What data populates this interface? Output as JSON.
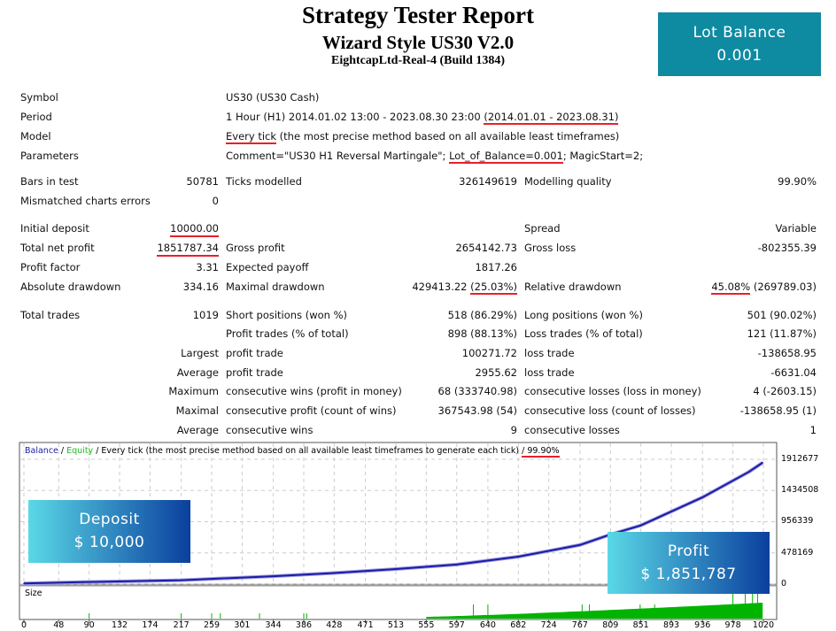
{
  "header": {
    "title": "Strategy Tester Report",
    "subtitle": "Wizard Style US30 V2.0",
    "build": "EightcapLtd-Real-4 (Build 1384)"
  },
  "lot_badge": {
    "label": "Lot Balance",
    "value": "0.001",
    "color": "#0e8aa1"
  },
  "info": [
    {
      "label": "Symbol",
      "value": "US30 (US30 Cash)"
    },
    {
      "label": "Period",
      "value": "1 Hour (H1) 2014.01.02 13:00 - 2023.08.30 23:00 ",
      "highlight": "(2014.01.01 - 2023.08.31)"
    },
    {
      "label": "Model",
      "highlight": "Every tick",
      "value": " (the most precise method based on all available least timeframes)"
    },
    {
      "label": "Parameters",
      "value": "Comment=\"US30 H1 Reversal Martingale\"; ",
      "highlight": "Lot_of_Balance=0.001",
      "tail": "; MagicStart=2;"
    }
  ],
  "stats": {
    "bars_label": "Bars in test",
    "bars": "50781",
    "ticks_label": "Ticks modelled",
    "ticks": "326149619",
    "quality_label": "Modelling quality",
    "quality": "99.90%",
    "mismatch_label": "Mismatched charts errors",
    "mismatch": "0",
    "deposit_label": "Initial deposit",
    "deposit": "10000.00",
    "spread_label": "Spread",
    "spread": "Variable",
    "net_label": "Total net profit",
    "net": "1851787.34",
    "gp_label": "Gross profit",
    "gp": "2654142.73",
    "gl_label": "Gross loss",
    "gl": "-802355.39",
    "pf_label": "Profit factor",
    "pf": "3.31",
    "ep_label": "Expected payoff",
    "ep": "1817.26",
    "ad_label": "Absolute drawdown",
    "ad": "334.16",
    "md_label": "Maximal drawdown",
    "md": "429413.22 ",
    "md_pct": "(25.03%)",
    "rd_label": "Relative drawdown",
    "rd_pct": "45.08%",
    "rd": " (269789.03)",
    "tt_label": "Total trades",
    "tt": "1019",
    "sp_label": "Short positions (won %)",
    "sp": "518 (86.29%)",
    "lp_label": "Long positions (won %)",
    "lp": "501 (90.02%)",
    "pt_label": "Profit trades (% of total)",
    "pt": "898 (88.13%)",
    "lt_label": "Loss trades (% of total)",
    "lt": "121 (11.87%)",
    "largest": "Largest",
    "lpt_label": "profit trade",
    "lpt": "100271.72",
    "llt_label": "loss trade",
    "llt": "-138658.95",
    "average": "Average",
    "apt_label": "profit trade",
    "apt": "2955.62",
    "alt_label": "loss trade",
    "alt": "-6631.04",
    "maximum": "Maximum",
    "mcw_label": "consecutive wins (profit in money)",
    "mcw": "68 (333740.98)",
    "mcl_label": "consecutive losses (loss in money)",
    "mcl": "4 (-2603.15)",
    "maximal": "Maximal",
    "mcp_label": "consecutive profit (count of wins)",
    "mcp": "367543.98 (54)",
    "mcll_label": "consecutive loss (count of losses)",
    "mcll": "-138658.95 (1)",
    "average2": "Average",
    "acw_label": "consecutive wins",
    "acw": "9",
    "acl_label": "consecutive losses",
    "acl": "1"
  },
  "chart_legend": {
    "balance": "Balance",
    "sep1": " / ",
    "equity": "Equity",
    "rest": " / Every tick (the most precise method based on all available least timeframes to generate each tick) ",
    "quality": "/ 99.90%"
  },
  "size_label": "Size",
  "deposit_box": {
    "label": "Deposit",
    "value": "$ 10,000"
  },
  "profit_box": {
    "label": "Profit",
    "value": "$ 1,851,787"
  },
  "chart_data": {
    "type": "line",
    "y_ticks": [
      "1912677",
      "1434508",
      "956339",
      "478169",
      "0"
    ],
    "x_ticks": [
      "0",
      "48",
      "90",
      "132",
      "174",
      "217",
      "259",
      "301",
      "344",
      "386",
      "428",
      "471",
      "513",
      "555",
      "597",
      "640",
      "682",
      "724",
      "767",
      "809",
      "851",
      "893",
      "936",
      "978",
      "1020"
    ],
    "ylim": [
      0,
      1912677
    ],
    "xlim": [
      0,
      1020
    ],
    "grid": true,
    "series": [
      {
        "name": "Balance",
        "color": "#1c1ca8",
        "x": [
          0,
          80,
          217,
          344,
          428,
          513,
          597,
          682,
          767,
          809,
          851,
          936,
          1000,
          1019
        ],
        "y": [
          10000,
          30000,
          60000,
          120000,
          170000,
          230000,
          300000,
          420000,
          600000,
          760000,
          900000,
          1330000,
          1720000,
          1861787
        ]
      }
    ],
    "colors": {
      "balance": "#1c1ca8",
      "equity": "#22b722",
      "size": "#00b400",
      "highlight": "#e8202a"
    }
  }
}
